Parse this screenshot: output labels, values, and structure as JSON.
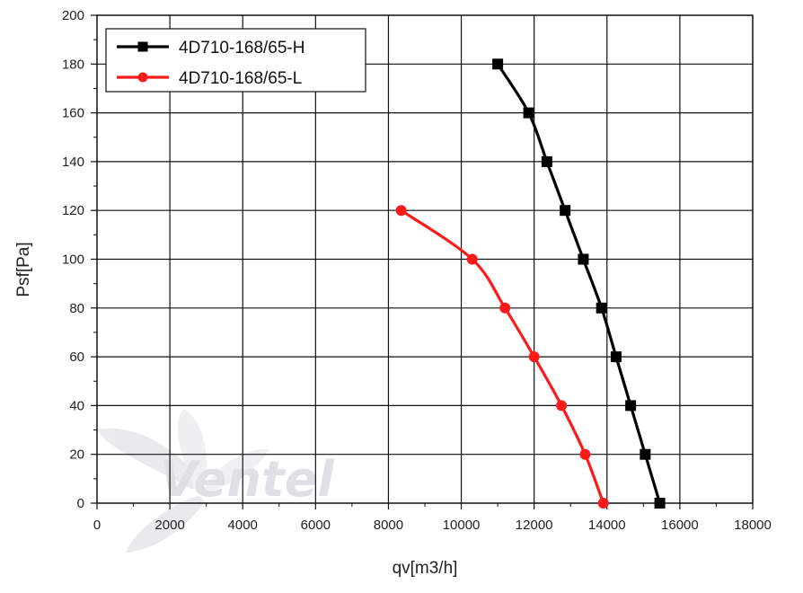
{
  "chart_data": {
    "type": "line",
    "title": "",
    "xlabel": "qv[m3/h]",
    "ylabel": "Psf[Pa]",
    "xlim": [
      0,
      18000
    ],
    "ylim": [
      0,
      200
    ],
    "xticks": [
      "0",
      "2000",
      "4000",
      "6000",
      "8000",
      "10000",
      "12000",
      "14000",
      "16000",
      "18000"
    ],
    "yticks": [
      "0",
      "20",
      "40",
      "60",
      "80",
      "100",
      "120",
      "140",
      "160",
      "180",
      "200"
    ],
    "grid": true,
    "legend_position": "top-left",
    "watermark": "Ventel",
    "series": [
      {
        "name": "4D710-168/65-H",
        "color": "#000000",
        "marker": "square",
        "points": [
          {
            "x": 11000,
            "y": 180
          },
          {
            "x": 11850,
            "y": 160
          },
          {
            "x": 12350,
            "y": 140
          },
          {
            "x": 12850,
            "y": 120
          },
          {
            "x": 13350,
            "y": 100
          },
          {
            "x": 13850,
            "y": 80
          },
          {
            "x": 14250,
            "y": 60
          },
          {
            "x": 14650,
            "y": 40
          },
          {
            "x": 15050,
            "y": 20
          },
          {
            "x": 15450,
            "y": 0
          }
        ]
      },
      {
        "name": "4D710-168/65-L",
        "color": "#ff1a1a",
        "marker": "circle",
        "points": [
          {
            "x": 8350,
            "y": 120
          },
          {
            "x": 10300,
            "y": 100
          },
          {
            "x": 11200,
            "y": 80
          },
          {
            "x": 12000,
            "y": 60
          },
          {
            "x": 12750,
            "y": 40
          },
          {
            "x": 13400,
            "y": 20
          },
          {
            "x": 13900,
            "y": 0
          }
        ]
      }
    ]
  }
}
